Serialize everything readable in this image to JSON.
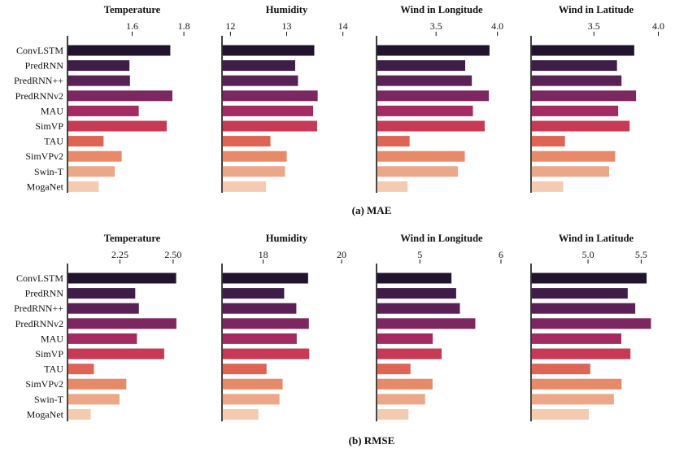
{
  "categories": [
    "ConvLSTM",
    "PredRNN",
    "PredRNN++",
    "PredRNNv2",
    "MAU",
    "SimVP",
    "TAU",
    "SimVPv2",
    "Swin-T",
    "MogaNet"
  ],
  "colors": [
    "#22142e",
    "#3e1d48",
    "#5a2156",
    "#7d2760",
    "#a42b62",
    "#c73a56",
    "#de6454",
    "#e68a6a",
    "#eba787",
    "#f2cbb0"
  ],
  "chart_data": [
    {
      "caption": "(a) MAE",
      "type": "bar",
      "orientation": "horizontal",
      "panels": [
        {
          "title": "Temperature",
          "xlim": [
            1.35,
            1.85
          ],
          "ticks": [
            1.6,
            1.8
          ],
          "tick_labels": [
            "1.6",
            "1.8"
          ],
          "values": [
            1.745,
            1.587,
            1.589,
            1.753,
            1.623,
            1.731,
            1.487,
            1.557,
            1.53,
            1.468
          ]
        },
        {
          "title": "Humidity",
          "xlim": [
            11.85,
            14.15
          ],
          "ticks": [
            12,
            13,
            14
          ],
          "tick_labels": [
            "12",
            "13",
            "14"
          ],
          "values": [
            13.48,
            13.14,
            13.19,
            13.54,
            13.46,
            13.53,
            12.7,
            12.99,
            12.96,
            12.62
          ]
        },
        {
          "title": "Wind in Longitude",
          "xlim": [
            3.015,
            4.075
          ],
          "ticks": [
            3.5,
            4.0
          ],
          "tick_labels": [
            "3.5",
            "4.0"
          ],
          "values": [
            3.93,
            3.732,
            3.786,
            3.925,
            3.795,
            3.891,
            3.279,
            3.729,
            3.672,
            3.263
          ]
        },
        {
          "title": "Wind in Latitude",
          "xlim": [
            3.012,
            4.022
          ],
          "ticks": [
            3.5,
            4.0
          ],
          "tick_labels": [
            "3.5",
            "4.0"
          ],
          "values": [
            3.808,
            3.674,
            3.709,
            3.822,
            3.683,
            3.772,
            3.27,
            3.66,
            3.613,
            3.257
          ]
        }
      ]
    },
    {
      "caption": "(b) RMSE",
      "type": "bar",
      "orientation": "horizontal",
      "panels": [
        {
          "title": "Temperature",
          "xlim": [
            2.004,
            2.611
          ],
          "ticks": [
            2.25,
            2.5
          ],
          "tick_labels": [
            "2.25",
            "2.50"
          ],
          "values": [
            2.511,
            2.319,
            2.336,
            2.512,
            2.327,
            2.455,
            2.125,
            2.277,
            2.245,
            2.11
          ]
        },
        {
          "title": "Humidity",
          "xlim": [
            16.95,
            20.25
          ],
          "ticks": [
            18,
            20
          ],
          "tick_labels": [
            "18",
            "20"
          ],
          "values": [
            19.13,
            18.52,
            18.83,
            19.15,
            18.84,
            19.16,
            18.07,
            18.48,
            18.4,
            17.86
          ]
        },
        {
          "title": "Wind in Longitude",
          "xlim": [
            4.467,
            6.07
          ],
          "ticks": [
            5,
            6
          ],
          "tick_labels": [
            "5",
            "6"
          ],
          "values": [
            5.382,
            5.44,
            5.486,
            5.676,
            5.151,
            5.261,
            4.877,
            5.149,
            5.058,
            4.853
          ]
        },
        {
          "title": "Wind in Latitude",
          "xlim": [
            4.464,
            5.688
          ],
          "ticks": [
            5.0,
            5.5
          ],
          "tick_labels": [
            "5.0",
            "5.5"
          ],
          "values": [
            5.545,
            5.367,
            5.438,
            5.586,
            5.307,
            5.393,
            5.015,
            5.309,
            5.237,
            5.001
          ]
        }
      ]
    }
  ]
}
